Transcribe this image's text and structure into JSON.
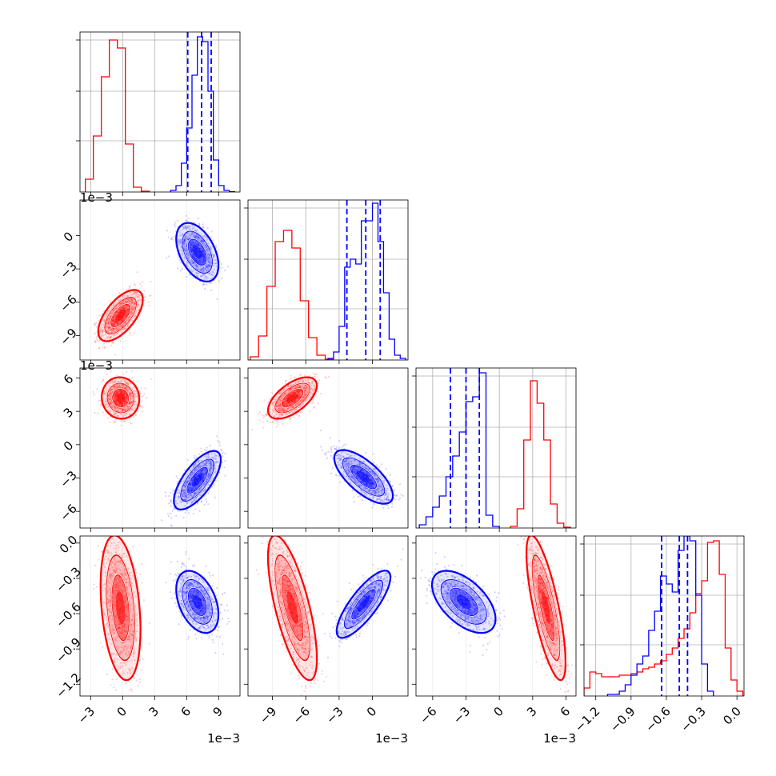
{
  "chart_data": {
    "type": "corner",
    "scale_note": "1e−3",
    "colors": {
      "red": "#ff0000",
      "blue": "#0000ff",
      "grid": "#b0b0b0"
    },
    "parameters": [
      {
        "range": [
          -4.0,
          11.0
        ],
        "ticks": [
          -3,
          0,
          3,
          6,
          9
        ],
        "tick_labels": [
          "−3",
          "0",
          "3",
          "6",
          "9"
        ],
        "offset_text": "1e−3"
      },
      {
        "range": [
          -11.2,
          3.2
        ],
        "ticks": [
          -9,
          -6,
          -3,
          0
        ],
        "tick_labels": [
          "−9",
          "−6",
          "−3",
          "0"
        ],
        "offset_text": "1e−3"
      },
      {
        "range": [
          -7.5,
          6.9
        ],
        "ticks": [
          -6,
          -3,
          0,
          3,
          6
        ],
        "tick_labels": [
          "−6",
          "−3",
          "0",
          "3",
          "6"
        ],
        "offset_text": "1e−3"
      },
      {
        "range": [
          -1.3,
          0.06
        ],
        "ticks": [
          -1.2,
          -0.9,
          -0.6,
          -0.3,
          0.0
        ],
        "tick_labels": [
          "−1.2",
          "−0.9",
          "−0.6",
          "−0.3",
          "0.0"
        ],
        "offset_text": ""
      }
    ],
    "histograms": [
      {
        "red": {
          "edges": [
            -3.5,
            -2.75,
            -2.0,
            -1.25,
            -0.5,
            0.25,
            1.0,
            1.75,
            2.5
          ],
          "counts": [
            0.08,
            0.35,
            0.72,
            0.95,
            0.9,
            0.3,
            0.03,
            0.005
          ]
        },
        "blue": {
          "edges": [
            4.5,
            5.0,
            5.5,
            6.0,
            6.5,
            7.0,
            7.5,
            8.0,
            8.5,
            9.0,
            9.5,
            10.0,
            10.5
          ],
          "counts": [
            0.01,
            0.04,
            0.18,
            0.4,
            0.73,
            0.97,
            0.94,
            0.63,
            0.2,
            0.04,
            0.01,
            0.002
          ]
        },
        "quantiles_blue": [
          6.1,
          7.4,
          8.3
        ]
      },
      {
        "red": {
          "edges": [
            -11,
            -10.25,
            -9.5,
            -8.75,
            -8.0,
            -7.25,
            -6.5,
            -5.75,
            -5.0,
            -4.25,
            -3.5
          ],
          "counts": [
            0.02,
            0.15,
            0.46,
            0.74,
            0.81,
            0.7,
            0.37,
            0.14,
            0.03,
            0.005
          ]
        },
        "blue": {
          "edges": [
            -4.0,
            -3.5,
            -3.0,
            -2.5,
            -2.0,
            -1.5,
            -1.0,
            -0.5,
            0.0,
            0.5,
            1.0,
            1.5,
            2.0,
            2.5,
            3.0
          ],
          "counts": [
            0.01,
            0.05,
            0.21,
            0.58,
            0.63,
            0.6,
            0.87,
            0.87,
            0.98,
            0.74,
            0.42,
            0.13,
            0.03,
            0.01
          ]
        },
        "quantiles_blue": [
          -2.3,
          -0.6,
          0.7
        ]
      },
      {
        "red": {
          "edges": [
            1.0,
            1.6,
            2.2,
            2.8,
            3.4,
            4.0,
            4.6,
            5.2,
            5.8,
            6.4
          ],
          "counts": [
            0.01,
            0.12,
            0.55,
            0.92,
            0.78,
            0.55,
            0.15,
            0.03,
            0.005
          ]
        },
        "blue": {
          "edges": [
            -7.2,
            -6.6,
            -6.0,
            -5.4,
            -4.8,
            -4.2,
            -3.6,
            -3.0,
            -2.4,
            -1.8,
            -1.2,
            -0.6,
            0.0
          ],
          "counts": [
            0.02,
            0.07,
            0.13,
            0.2,
            0.32,
            0.45,
            0.6,
            0.79,
            0.82,
            0.97,
            0.08,
            0.01
          ]
        },
        "quantiles_blue": [
          -4.4,
          -3.0,
          -1.8
        ]
      },
      {
        "red": {
          "edges": [
            -1.3,
            -1.25,
            -1.2,
            -1.15,
            -1.1,
            -1.05,
            -1.0,
            -0.95,
            -0.9,
            -0.85,
            -0.8,
            -0.75,
            -0.7,
            -0.65,
            -0.6,
            -0.55,
            -0.5,
            -0.45,
            -0.4,
            -0.35,
            -0.3,
            -0.25,
            -0.2,
            -0.15,
            -0.1,
            -0.05,
            0.0,
            0.05
          ],
          "counts": [
            0.05,
            0.15,
            0.14,
            0.12,
            0.12,
            0.12,
            0.13,
            0.13,
            0.14,
            0.15,
            0.17,
            0.18,
            0.2,
            0.22,
            0.26,
            0.3,
            0.36,
            0.42,
            0.52,
            0.64,
            0.72,
            0.96,
            0.97,
            0.76,
            0.3,
            0.1,
            0.03
          ]
        },
        "blue": {
          "edges": [
            -1.1,
            -1.05,
            -1.0,
            -0.95,
            -0.9,
            -0.85,
            -0.8,
            -0.75,
            -0.7,
            -0.65,
            -0.6,
            -0.55,
            -0.5,
            -0.45,
            -0.4,
            -0.35,
            -0.3,
            -0.25,
            -0.2
          ],
          "counts": [
            0.01,
            0.01,
            0.03,
            0.07,
            0.13,
            0.2,
            0.25,
            0.41,
            0.53,
            0.75,
            0.7,
            0.65,
            0.91,
            1.0,
            0.97,
            0.63,
            0.2,
            0.03
          ]
        },
        "quantiles_blue": [
          -0.64,
          -0.49,
          -0.42
        ]
      }
    ],
    "pairs": [
      {
        "row": 1,
        "col": 0,
        "red": {
          "center": [
            -0.2,
            -7.2
          ],
          "std": [
            0.95,
            1.05
          ],
          "corr": 0.62,
          "bend": 0.0
        },
        "blue": {
          "center": [
            7.0,
            -1.5
          ],
          "std": [
            0.9,
            1.2
          ],
          "corr": -0.45,
          "bend": 0.0
        }
      },
      {
        "row": 2,
        "col": 0,
        "red": {
          "center": [
            -0.2,
            4.2
          ],
          "std": [
            0.8,
            0.85
          ],
          "corr": -0.05,
          "bend": 0.0
        },
        "blue": {
          "center": [
            7.0,
            -3.2
          ],
          "std": [
            1.0,
            1.2
          ],
          "corr": 0.7,
          "bend": 0.0
        }
      },
      {
        "row": 2,
        "col": 1,
        "red": {
          "center": [
            -7.2,
            4.2
          ],
          "std": [
            1.0,
            0.85
          ],
          "corr": 0.6,
          "bend": 0.0
        },
        "blue": {
          "center": [
            -0.8,
            -2.9
          ],
          "std": [
            1.2,
            1.1
          ],
          "corr": -0.7,
          "bend": 0.0
        }
      },
      {
        "row": 3,
        "col": 0,
        "red": {
          "center": [
            -0.2,
            -0.55
          ],
          "std": [
            0.85,
            0.28
          ],
          "corr": -0.3,
          "bend": 0.0
        },
        "blue": {
          "center": [
            7.0,
            -0.5
          ],
          "std": [
            0.9,
            0.12
          ],
          "corr": -0.4,
          "bend": 0.0
        }
      },
      {
        "row": 3,
        "col": 1,
        "red": {
          "center": [
            -7.2,
            -0.55
          ],
          "std": [
            1.0,
            0.28
          ],
          "corr": -0.7,
          "bend": 0.0
        },
        "blue": {
          "center": [
            -0.8,
            -0.52
          ],
          "std": [
            1.1,
            0.13
          ],
          "corr": 0.8,
          "bend": 0.0
        }
      },
      {
        "row": 3,
        "col": 2,
        "red": {
          "center": [
            4.2,
            -0.55
          ],
          "std": [
            0.8,
            0.28
          ],
          "corr": -0.75,
          "bend": 0.0
        },
        "blue": {
          "center": [
            -3.2,
            -0.5
          ],
          "std": [
            1.3,
            0.12
          ],
          "corr": -0.55,
          "bend": 0.0
        }
      }
    ]
  }
}
